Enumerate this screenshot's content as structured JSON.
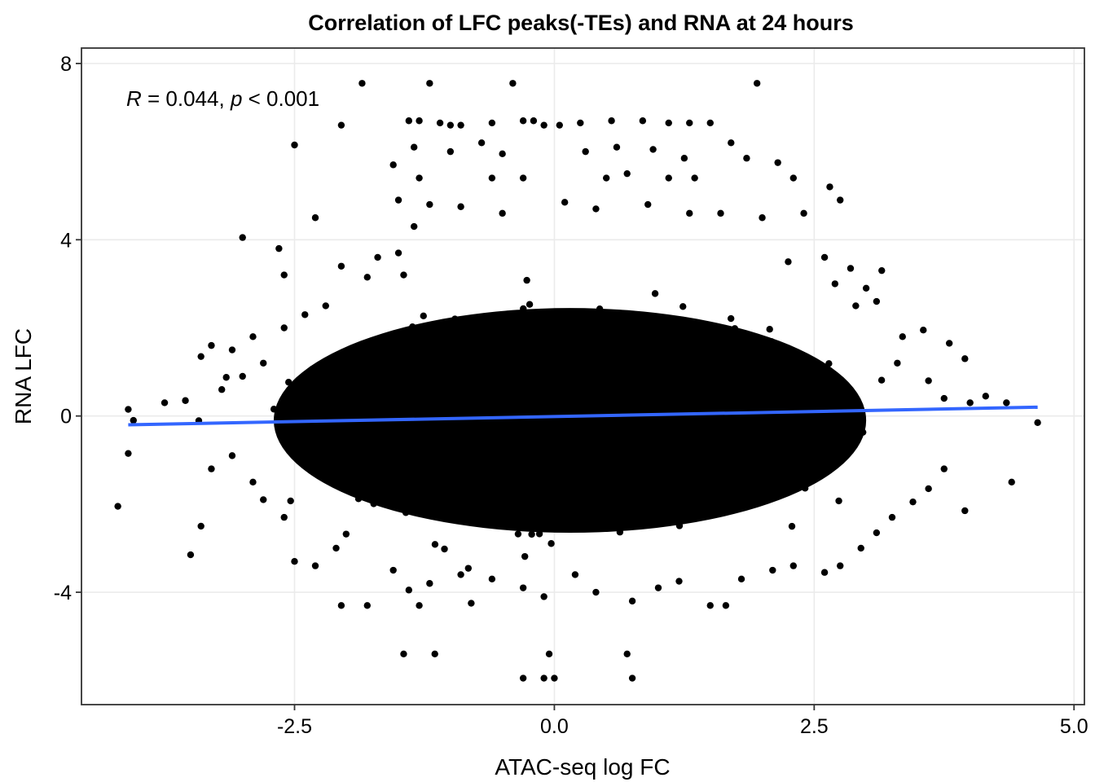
{
  "chart_data": {
    "type": "scatter",
    "title": "Correlation of LFC peaks(-TEs) and RNA at 24 hours",
    "xlabel": "ATAC-seq log FC",
    "ylabel": "RNA LFC",
    "xlim": [
      -4.55,
      5.1
    ],
    "ylim": [
      -6.55,
      8.35
    ],
    "x_ticks": [
      -2.5,
      0,
      2.5,
      5
    ],
    "x_tick_labels": [
      "-2.5",
      "0.0",
      "2.5",
      "5.0"
    ],
    "y_ticks": [
      -4,
      0,
      4,
      8
    ],
    "y_tick_labels": [
      "-4",
      "0",
      "4",
      "8"
    ],
    "grid": true,
    "annotation": {
      "r_label": "R",
      "r_value": " = 0.044, ",
      "p_label": "p",
      "p_value": " < 0.001"
    },
    "trend_line": {
      "color": "#3366ff",
      "x": [
        -4.1,
        4.65
      ],
      "y": [
        -0.2,
        0.2
      ]
    },
    "point_color": "#000000",
    "dense_core": {
      "center": [
        0.15,
        -0.1
      ],
      "sd_x": 0.95,
      "sd_y": 0.85,
      "corr": 0.044
    },
    "points": [
      [
        -1.85,
        7.55
      ],
      [
        -1.2,
        7.55
      ],
      [
        -0.4,
        7.55
      ],
      [
        1.95,
        7.55
      ],
      [
        -2.5,
        6.15
      ],
      [
        -2.05,
        6.6
      ],
      [
        -1.4,
        6.7
      ],
      [
        -1.3,
        6.7
      ],
      [
        -1.1,
        6.65
      ],
      [
        -1.0,
        6.6
      ],
      [
        -0.9,
        6.6
      ],
      [
        -0.6,
        6.65
      ],
      [
        -0.3,
        6.7
      ],
      [
        -0.2,
        6.7
      ],
      [
        -0.1,
        6.6
      ],
      [
        0.05,
        6.6
      ],
      [
        0.25,
        6.65
      ],
      [
        0.55,
        6.7
      ],
      [
        0.85,
        6.7
      ],
      [
        1.1,
        6.65
      ],
      [
        1.3,
        6.65
      ],
      [
        1.5,
        6.65
      ],
      [
        -1.35,
        6.1
      ],
      [
        -1.0,
        6.0
      ],
      [
        -0.7,
        6.2
      ],
      [
        -0.5,
        5.95
      ],
      [
        0.3,
        6.0
      ],
      [
        0.6,
        6.1
      ],
      [
        0.95,
        6.05
      ],
      [
        1.25,
        5.85
      ],
      [
        1.7,
        6.2
      ],
      [
        1.85,
        5.85
      ],
      [
        2.15,
        5.75
      ],
      [
        -1.55,
        5.7
      ],
      [
        -1.3,
        5.4
      ],
      [
        -0.6,
        5.4
      ],
      [
        -0.3,
        5.4
      ],
      [
        0.5,
        5.4
      ],
      [
        0.7,
        5.5
      ],
      [
        1.1,
        5.4
      ],
      [
        1.35,
        5.4
      ],
      [
        2.3,
        5.4
      ],
      [
        2.65,
        5.2
      ],
      [
        2.75,
        4.9
      ],
      [
        -1.5,
        4.9
      ],
      [
        -1.2,
        4.8
      ],
      [
        -0.9,
        4.75
      ],
      [
        -0.5,
        4.6
      ],
      [
        0.1,
        4.85
      ],
      [
        0.4,
        4.7
      ],
      [
        0.9,
        4.8
      ],
      [
        1.3,
        4.6
      ],
      [
        1.6,
        4.6
      ],
      [
        2.0,
        4.5
      ],
      [
        2.4,
        4.6
      ],
      [
        -3.0,
        4.05
      ],
      [
        -2.65,
        3.8
      ],
      [
        -2.6,
        3.2
      ],
      [
        -2.3,
        4.5
      ],
      [
        -2.05,
        3.4
      ],
      [
        -1.7,
        3.6
      ],
      [
        -1.8,
        3.15
      ],
      [
        -1.5,
        3.7
      ],
      [
        -1.45,
        3.2
      ],
      [
        -1.35,
        4.3
      ],
      [
        2.6,
        3.6
      ],
      [
        2.85,
        3.35
      ],
      [
        3.15,
        3.3
      ],
      [
        3.0,
        2.9
      ],
      [
        2.7,
        3.0
      ],
      [
        2.25,
        3.5
      ],
      [
        -3.3,
        1.6
      ],
      [
        -3.4,
        1.35
      ],
      [
        -3.1,
        1.5
      ],
      [
        -2.9,
        1.8
      ],
      [
        -2.8,
        1.2
      ],
      [
        -2.6,
        2.0
      ],
      [
        -2.4,
        2.3
      ],
      [
        -2.2,
        2.5
      ],
      [
        -3.55,
        0.35
      ],
      [
        -3.75,
        0.3
      ],
      [
        -3.2,
        0.6
      ],
      [
        -3.0,
        0.9
      ],
      [
        2.9,
        2.5
      ],
      [
        3.1,
        2.6
      ],
      [
        3.35,
        1.8
      ],
      [
        3.55,
        1.95
      ],
      [
        3.8,
        1.65
      ],
      [
        3.95,
        1.3
      ],
      [
        3.3,
        1.2
      ],
      [
        3.6,
        0.8
      ],
      [
        3.75,
        0.4
      ],
      [
        4.0,
        0.3
      ],
      [
        4.15,
        0.45
      ],
      [
        4.35,
        0.3
      ],
      [
        4.65,
        -0.15
      ],
      [
        4.4,
        -1.5
      ],
      [
        3.95,
        -2.15
      ],
      [
        -4.1,
        0.15
      ],
      [
        -4.05,
        -0.1
      ],
      [
        -4.1,
        -0.85
      ],
      [
        -4.2,
        -2.05
      ],
      [
        -3.4,
        -2.5
      ],
      [
        -3.5,
        -3.15
      ],
      [
        -3.3,
        -1.2
      ],
      [
        -3.1,
        -0.9
      ],
      [
        -2.9,
        -1.5
      ],
      [
        -2.8,
        -1.9
      ],
      [
        -2.6,
        -2.3
      ],
      [
        -2.5,
        -3.3
      ],
      [
        -2.3,
        -3.4
      ],
      [
        -2.1,
        -3.0
      ],
      [
        -2.05,
        -4.3
      ],
      [
        -1.8,
        -4.3
      ],
      [
        -1.55,
        -3.5
      ],
      [
        -1.4,
        -3.95
      ],
      [
        -1.2,
        -3.8
      ],
      [
        -1.3,
        -4.3
      ],
      [
        -0.9,
        -3.6
      ],
      [
        -0.8,
        -4.25
      ],
      [
        -0.6,
        -3.7
      ],
      [
        -0.3,
        -3.9
      ],
      [
        -0.1,
        -4.1
      ],
      [
        0.2,
        -3.6
      ],
      [
        0.4,
        -4.0
      ],
      [
        0.75,
        -4.2
      ],
      [
        1.0,
        -3.9
      ],
      [
        1.2,
        -3.75
      ],
      [
        1.5,
        -4.3
      ],
      [
        1.65,
        -4.3
      ],
      [
        1.8,
        -3.7
      ],
      [
        2.1,
        -3.5
      ],
      [
        2.3,
        -3.4
      ],
      [
        2.6,
        -3.55
      ],
      [
        2.75,
        -3.4
      ],
      [
        2.95,
        -3.0
      ],
      [
        3.1,
        -2.65
      ],
      [
        3.25,
        -2.3
      ],
      [
        3.45,
        -1.95
      ],
      [
        3.6,
        -1.65
      ],
      [
        3.75,
        -1.2
      ],
      [
        -1.45,
        -5.4
      ],
      [
        -1.15,
        -5.4
      ],
      [
        -0.3,
        -5.95
      ],
      [
        -0.1,
        -5.95
      ],
      [
        0.0,
        -5.95
      ],
      [
        -0.05,
        -5.4
      ],
      [
        0.7,
        -5.4
      ],
      [
        0.75,
        -5.95
      ]
    ]
  }
}
